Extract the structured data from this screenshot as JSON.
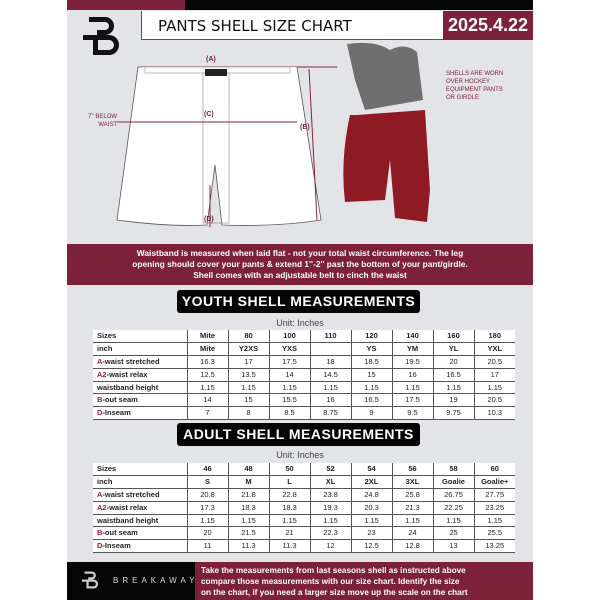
{
  "header": {
    "title": "PANTS SHELL SIZE CHART",
    "date": "2025.4.22",
    "brand_logo_letter": "B"
  },
  "diagram": {
    "label_a": "(A)",
    "label_b": "(B)",
    "label_c": "(C)",
    "label_d": "(D)",
    "note_c": [
      "7'' BELOW",
      "WAIST"
    ]
  },
  "photo_note": [
    "SHELLS ARE WORN",
    "OVER HOCKEY",
    "EQUIPMENT PANTS",
    "OR GIRDLE"
  ],
  "info_band": [
    "Waistband is measured when laid flat - not your total waist circumference. The leg",
    "opening should cover your pants & extend 1''-2'' past the bottom of your pant/girdle.",
    "Shell comes with an adjustable belt to cinch the waist"
  ],
  "youth": {
    "title": "YOUTH SHELL MEASUREMENTS",
    "unit": "Unit: Inches",
    "rows": [
      [
        "Sizes",
        "Mite",
        "80",
        "100",
        "110",
        "120",
        "140",
        "160",
        "180"
      ],
      [
        "inch",
        "Mite",
        "Y2XS",
        "YXS",
        "",
        "YS",
        "YM",
        "YL",
        "YXL"
      ],
      [
        "A-waist stretched",
        "16.3",
        "17",
        "17.5",
        "18",
        "18.5",
        "19.5",
        "20",
        "20.5"
      ],
      [
        "A2-waist relax",
        "12.5",
        "13.5",
        "14",
        "14.5",
        "15",
        "16",
        "16.5",
        "17"
      ],
      [
        "waistband height",
        "1.15",
        "1.15",
        "1.15",
        "1.15",
        "1.15",
        "1.15",
        "1.15",
        "1.15"
      ],
      [
        "B-out seam",
        "14",
        "15",
        "15.5",
        "16",
        "16.5",
        "17.5",
        "19",
        "20.5"
      ],
      [
        "D-Inseam",
        "7",
        "8",
        "8.5",
        "8.75",
        "9",
        "9.5",
        "9.75",
        "10.3"
      ]
    ]
  },
  "adult": {
    "title": "ADULT SHELL MEASUREMENTS",
    "unit": "Unit: Inches",
    "rows": [
      [
        "Sizes",
        "46",
        "48",
        "50",
        "52",
        "54",
        "56",
        "58",
        "60"
      ],
      [
        "inch",
        "S",
        "M",
        "L",
        "XL",
        "2XL",
        "3XL",
        "Goalie",
        "Goalie+"
      ],
      [
        "A-waist stretched",
        "20.8",
        "21.8",
        "22.8",
        "23.8",
        "24.8",
        "25.8",
        "26.75",
        "27.75"
      ],
      [
        "A2-waist relax",
        "17.3",
        "18.3",
        "18.3",
        "19.3",
        "20.3",
        "21.3",
        "22.25",
        "23.25"
      ],
      [
        "waistband height",
        "1.15",
        "1.15",
        "1.15",
        "1.15",
        "1.15",
        "1.15",
        "1.15",
        "1.15"
      ],
      [
        "B-out seam",
        "20",
        "21.5",
        "21",
        "22.3",
        "23",
        "24",
        "25",
        "25.5"
      ],
      [
        "D-Inseam",
        "11",
        "11.3",
        "11.3",
        "12",
        "12.5",
        "12.8",
        "13",
        "13.25"
      ]
    ]
  },
  "footer": {
    "brand": "BREAKAWAY",
    "text": [
      "Take the measurements from last seasons shell as instructed above",
      "compare those measurements  with our size chart. Identify the size",
      "on the chart, if you need a larger size move up the scale on the chart"
    ]
  },
  "colors": {
    "accent": "#7d2039",
    "dark": "#050505",
    "background": "#e3e4e8"
  }
}
